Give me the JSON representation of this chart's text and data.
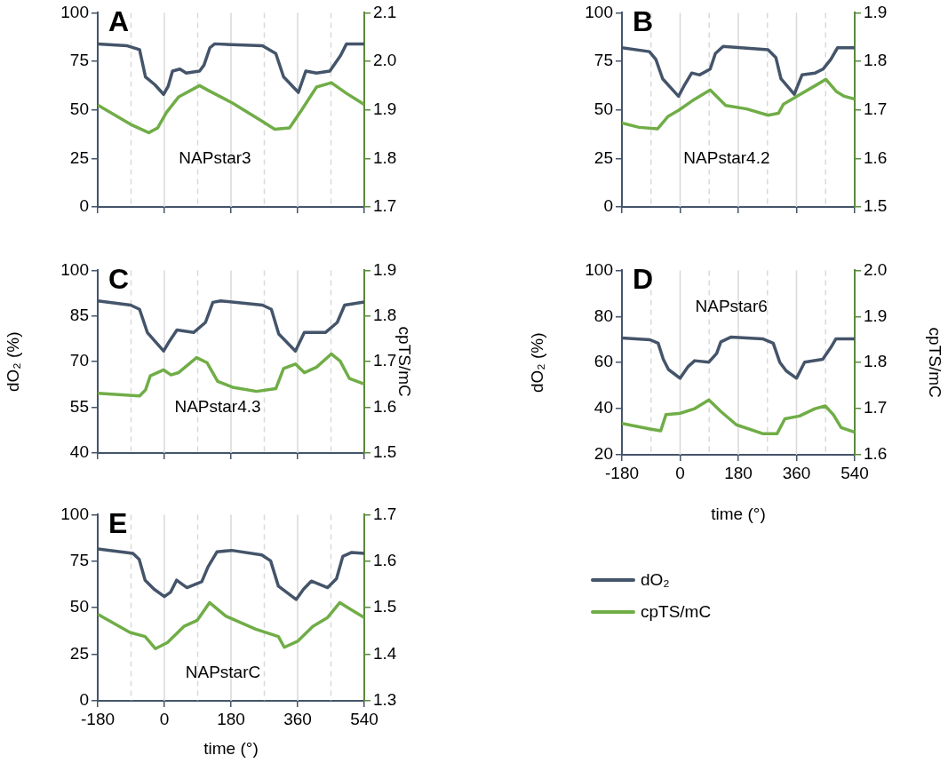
{
  "chart_data": [
    {
      "type": "line",
      "title": "A",
      "annotations": [
        "NAPstar3"
      ],
      "xlim": [
        -180,
        540
      ],
      "xticks": [
        -180,
        0,
        180,
        360,
        540
      ],
      "ylim": [
        0,
        100
      ],
      "yticks": [
        0,
        25,
        50,
        75,
        100
      ],
      "y2lim": [
        1.7,
        2.1
      ],
      "y2ticks": [
        1.7,
        1.8,
        1.9,
        {
          "value": 2,
          "label": "2.0"
        },
        2.1
      ],
      "tick_labels": "y",
      "ref_lines": [
        {
          "axis": "x",
          "value": -90,
          "color": "#d9d9d9",
          "line_style": "dashed"
        },
        {
          "axis": "x",
          "value": 0,
          "color": "#d9d9d9",
          "line_style": "solid"
        },
        {
          "axis": "x",
          "value": 90,
          "color": "#d9d9d9",
          "line_style": "dashed"
        },
        {
          "axis": "x",
          "value": 180,
          "color": "#d9d9d9",
          "line_style": "solid"
        },
        {
          "axis": "x",
          "value": 270,
          "color": "#d9d9d9",
          "line_style": "dashed"
        },
        {
          "axis": "x",
          "value": 360,
          "color": "#d9d9d9",
          "line_style": "solid"
        },
        {
          "axis": "x",
          "value": 450,
          "color": "#d9d9d9",
          "line_style": "dashed"
        }
      ],
      "series": [
        {
          "color": "#44546a",
          "x": [
            -180,
            -100,
            -67,
            -51,
            -26,
            -2,
            10,
            22,
            42,
            59,
            95,
            107,
            123,
            136,
            265,
            301,
            322,
            362,
            382,
            411,
            447,
            476,
            492,
            540
          ],
          "values": [
            84,
            83,
            81,
            67,
            63,
            58,
            62,
            70,
            71,
            69,
            70,
            73,
            82,
            84,
            83,
            79,
            67,
            59,
            70,
            69,
            70,
            78,
            84,
            84
          ]
        },
        {
          "color": "#70ad47",
          "axis": "y2",
          "x": [
            -180,
            -91,
            -42,
            -18,
            6,
            39,
            95,
            119,
            184,
            265,
            298,
            338,
            371,
            411,
            451,
            492,
            540
          ],
          "values": [
            1.91,
            1.87,
            1.853,
            1.863,
            1.895,
            1.927,
            1.95,
            1.94,
            1.914,
            1.876,
            1.86,
            1.863,
            1.9,
            1.947,
            1.956,
            1.934,
            1.911
          ]
        }
      ]
    },
    {
      "type": "line",
      "title": "B",
      "annotations": [
        "NAPstar4.2"
      ],
      "xlim": [
        -180,
        540
      ],
      "xticks": [
        -180,
        0,
        180,
        360,
        540
      ],
      "ylim": [
        0,
        100
      ],
      "yticks": [
        0,
        25,
        50,
        75,
        100
      ],
      "y2lim": [
        1.5,
        1.9
      ],
      "y2ticks": [
        1.5,
        1.6,
        1.7,
        1.8,
        1.9
      ],
      "tick_labels": "y",
      "ref_lines": [
        {
          "axis": "x",
          "value": -90,
          "color": "#d9d9d9",
          "line_style": "dashed"
        },
        {
          "axis": "x",
          "value": 0,
          "color": "#d9d9d9",
          "line_style": "solid"
        },
        {
          "axis": "x",
          "value": 90,
          "color": "#d9d9d9",
          "line_style": "dashed"
        },
        {
          "axis": "x",
          "value": 180,
          "color": "#d9d9d9",
          "line_style": "solid"
        },
        {
          "axis": "x",
          "value": 270,
          "color": "#d9d9d9",
          "line_style": "dashed"
        },
        {
          "axis": "x",
          "value": 360,
          "color": "#d9d9d9",
          "line_style": "solid"
        },
        {
          "axis": "x",
          "value": 450,
          "color": "#d9d9d9",
          "line_style": "dashed"
        }
      ],
      "series": [
        {
          "color": "#44546a",
          "x": [
            -180,
            -95,
            -75,
            -54,
            -5,
            11,
            36,
            60,
            93,
            109,
            133,
            272,
            296,
            312,
            353,
            377,
            418,
            442,
            466,
            487,
            540
          ],
          "values": [
            82,
            80,
            76,
            66,
            57,
            62,
            69,
            68,
            71,
            79,
            82.7,
            81,
            77,
            66,
            58,
            68,
            69,
            71,
            76,
            82,
            82
          ]
        },
        {
          "color": "#70ad47",
          "axis": "y2",
          "x": [
            -180,
            -127,
            -70,
            -38,
            -5,
            36,
            93,
            141,
            206,
            272,
            304,
            320,
            369,
            418,
            451,
            483,
            508,
            540
          ],
          "values": [
            1.673,
            1.664,
            1.661,
            1.686,
            1.699,
            1.718,
            1.741,
            1.709,
            1.702,
            1.689,
            1.693,
            1.712,
            1.731,
            1.75,
            1.763,
            1.738,
            1.728,
            1.722
          ]
        }
      ]
    },
    {
      "type": "line",
      "title": "C",
      "ylabel": "dO₂ (%)",
      "y2label": "cpTS/mC",
      "annotations": [
        "NAPstar4.3"
      ],
      "xlim": [
        -180,
        540
      ],
      "xticks": [
        -180,
        0,
        180,
        360,
        540
      ],
      "ylim": [
        40,
        100
      ],
      "yticks": [
        40,
        55,
        70,
        85,
        100
      ],
      "y2lim": [
        1.5,
        1.9
      ],
      "y2ticks": [
        1.5,
        1.6,
        1.7,
        1.8,
        1.9
      ],
      "tick_labels": "y",
      "ref_lines": [
        {
          "axis": "x",
          "value": -90,
          "color": "#d9d9d9",
          "line_style": "dashed"
        },
        {
          "axis": "x",
          "value": 0,
          "color": "#d9d9d9",
          "line_style": "solid"
        },
        {
          "axis": "x",
          "value": 90,
          "color": "#d9d9d9",
          "line_style": "dashed"
        },
        {
          "axis": "x",
          "value": 180,
          "color": "#d9d9d9",
          "line_style": "solid"
        },
        {
          "axis": "x",
          "value": 270,
          "color": "#d9d9d9",
          "line_style": "dashed"
        },
        {
          "axis": "x",
          "value": 360,
          "color": "#d9d9d9",
          "line_style": "solid"
        },
        {
          "axis": "x",
          "value": 450,
          "color": "#d9d9d9",
          "line_style": "dashed"
        }
      ],
      "series": [
        {
          "color": "#44546a",
          "x": [
            -180,
            -91,
            -67,
            -46,
            -26,
            -2,
            14,
            34,
            79,
            111,
            131,
            152,
            265,
            289,
            309,
            354,
            378,
            435,
            467,
            487,
            540
          ],
          "values": [
            90,
            88.6,
            87.2,
            79.6,
            76.8,
            73.5,
            76.8,
            80.4,
            79.6,
            82.9,
            89.5,
            90,
            88.6,
            87.2,
            79.1,
            73.5,
            79.6,
            79.6,
            82.9,
            88.6,
            89.6
          ]
        },
        {
          "color": "#70ad47",
          "axis": "y2",
          "x": [
            -180,
            -67,
            -51,
            -38,
            -2,
            18,
            38,
            87,
            115,
            144,
            184,
            249,
            301,
            322,
            354,
            378,
            411,
            451,
            475,
            500,
            540
          ],
          "values": [
            1.631,
            1.625,
            1.638,
            1.669,
            1.682,
            1.671,
            1.676,
            1.709,
            1.698,
            1.657,
            1.644,
            1.635,
            1.641,
            1.685,
            1.695,
            1.676,
            1.688,
            1.717,
            1.701,
            1.663,
            1.651
          ]
        }
      ]
    },
    {
      "type": "line",
      "title": "D",
      "xlabel": "time (°)",
      "ylabel": "dO₂ (%)",
      "y2label": "cpTS/mC",
      "annotations": [
        "NAPstar6"
      ],
      "xlim": [
        -180,
        540
      ],
      "xticks": [
        -180,
        0,
        180,
        360,
        540
      ],
      "ylim": [
        20,
        100
      ],
      "yticks": [
        20,
        40,
        60,
        80,
        100
      ],
      "y2lim": [
        1.6,
        2.0
      ],
      "y2ticks": [
        1.6,
        1.7,
        1.8,
        1.9,
        {
          "value": 2,
          "label": "2.0"
        }
      ],
      "ref_lines": [
        {
          "axis": "x",
          "value": -90,
          "color": "#d9d9d9",
          "line_style": "dashed"
        },
        {
          "axis": "x",
          "value": 0,
          "color": "#d9d9d9",
          "line_style": "solid"
        },
        {
          "axis": "x",
          "value": 90,
          "color": "#d9d9d9",
          "line_style": "dashed"
        },
        {
          "axis": "x",
          "value": 180,
          "color": "#d9d9d9",
          "line_style": "solid"
        },
        {
          "axis": "x",
          "value": 270,
          "color": "#d9d9d9",
          "line_style": "dashed"
        },
        {
          "axis": "x",
          "value": 360,
          "color": "#d9d9d9",
          "line_style": "solid"
        },
        {
          "axis": "x",
          "value": 450,
          "color": "#d9d9d9",
          "line_style": "dashed"
        }
      ],
      "series": [
        {
          "color": "#44546a",
          "x": [
            -180,
            -93,
            -68,
            -52,
            -36,
            0,
            25,
            45,
            89,
            113,
            126,
            158,
            255,
            288,
            308,
            328,
            360,
            385,
            441,
            466,
            482,
            540
          ],
          "values": [
            70.7,
            69.9,
            68.4,
            61.4,
            57,
            53.2,
            58.3,
            60.8,
            60.2,
            64,
            69,
            71.1,
            70.3,
            68.4,
            60.2,
            56.4,
            53.2,
            60.2,
            61.4,
            66.5,
            70.3,
            70.3
          ]
        },
        {
          "color": "#70ad47",
          "axis": "y2",
          "x": [
            -180,
            -93,
            -60,
            -44,
            0,
            45,
            89,
            126,
            174,
            255,
            300,
            324,
            369,
            417,
            449,
            474,
            498,
            540
          ],
          "values": [
            1.668,
            1.656,
            1.652,
            1.687,
            1.69,
            1.7,
            1.719,
            1.694,
            1.665,
            1.646,
            1.646,
            1.678,
            1.684,
            1.7,
            1.706,
            1.687,
            1.659,
            1.649
          ]
        }
      ]
    },
    {
      "type": "line",
      "title": "E",
      "xlabel": "time (°)",
      "legend": "right",
      "annotations": [
        "NAPstarC"
      ],
      "xlim": [
        -180,
        540
      ],
      "xticks": [
        -180,
        0,
        180,
        360,
        540
      ],
      "ylim": [
        0,
        100
      ],
      "yticks": [
        0,
        25,
        50,
        75,
        100
      ],
      "y2lim": [
        1.3,
        1.7
      ],
      "y2ticks": [
        1.3,
        1.4,
        1.5,
        1.6,
        1.7
      ],
      "ref_lines": [
        {
          "axis": "x",
          "value": -90,
          "color": "#d9d9d9",
          "line_style": "dashed"
        },
        {
          "axis": "x",
          "value": 0,
          "color": "#d9d9d9",
          "line_style": "solid"
        },
        {
          "axis": "x",
          "value": 90,
          "color": "#d9d9d9",
          "line_style": "dashed"
        },
        {
          "axis": "x",
          "value": 180,
          "color": "#d9d9d9",
          "line_style": "solid"
        },
        {
          "axis": "x",
          "value": 270,
          "color": "#d9d9d9",
          "line_style": "dashed"
        },
        {
          "axis": "x",
          "value": 360,
          "color": "#d9d9d9",
          "line_style": "solid"
        },
        {
          "axis": "x",
          "value": 450,
          "color": "#d9d9d9",
          "line_style": "dashed"
        }
      ],
      "series": [
        {
          "name": "dO₂",
          "color": "#44546a",
          "x": [
            -180,
            -85,
            -68,
            -52,
            -28,
            0,
            17,
            33,
            61,
            101,
            118,
            142,
            182,
            263,
            287,
            308,
            356,
            376,
            397,
            441,
            465,
            482,
            506,
            540
          ],
          "values": [
            81.6,
            79.2,
            76,
            64.8,
            60,
            56,
            58.4,
            64.8,
            60.8,
            64,
            72,
            80,
            80.8,
            78.4,
            75.2,
            61.6,
            54.4,
            60,
            64.3,
            60.8,
            65.6,
            77.6,
            79.7,
            79.2
          ]
        },
        {
          "name": "cpTS/mC",
          "color": "#70ad47",
          "axis": "y2",
          "x": [
            -180,
            -93,
            -52,
            -24,
            8,
            53,
            89,
            122,
            166,
            247,
            308,
            324,
            360,
            401,
            441,
            474,
            506,
            540
          ],
          "values": [
            1.486,
            1.447,
            1.438,
            1.412,
            1.425,
            1.46,
            1.473,
            1.511,
            1.482,
            1.454,
            1.438,
            1.415,
            1.428,
            1.46,
            1.479,
            1.511,
            1.495,
            1.479
          ]
        }
      ]
    }
  ]
}
